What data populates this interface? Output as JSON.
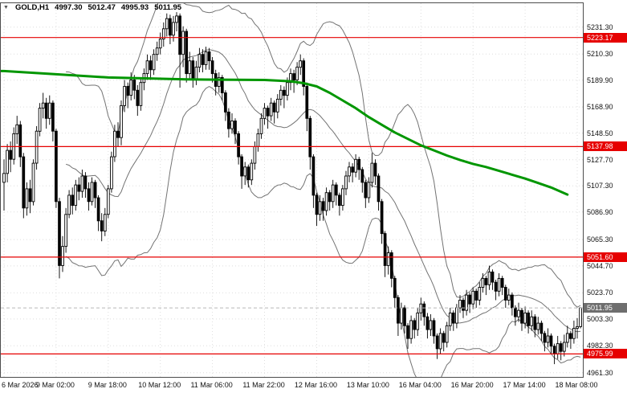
{
  "header": {
    "symbol_period": "GOLD,H1",
    "open": "4997.30",
    "high": "5012.47",
    "low": "4995.93",
    "close": "5011.95"
  },
  "chart_data": {
    "type": "candlestick",
    "title": "GOLD,H1",
    "timeframe": "H1",
    "symbol": "GOLD",
    "x_labels": [
      "6 Mar 2026",
      "9 Mar 02:00",
      "9 Mar 18:00",
      "10 Mar 12:00",
      "11 Mar 06:00",
      "11 Mar 22:00",
      "12 Mar 16:00",
      "13 Mar 10:00",
      "16 Mar 04:00",
      "16 Mar 20:00",
      "17 Mar 14:00",
      "18 Mar 08:00"
    ],
    "bars_per_label": 16,
    "y_ticks": [
      "5231.30",
      "5210.30",
      "5189.90",
      "5168.90",
      "5148.50",
      "5127.70",
      "5107.30",
      "5086.90",
      "5065.30",
      "5044.70",
      "5023.70",
      "5003.30",
      "4982.30",
      "4961.30"
    ],
    "y_range": [
      4958,
      5250
    ],
    "levels": [
      {
        "price": 5223.17,
        "label": "5223.17",
        "kind": "resistance"
      },
      {
        "price": 5137.98,
        "label": "5137.98",
        "kind": "resistance"
      },
      {
        "price": 5051.6,
        "label": "5051.60",
        "kind": "support"
      },
      {
        "price": 4975.99,
        "label": "4975.99",
        "kind": "support"
      }
    ],
    "current_price": {
      "price": 5011.95,
      "label": "5011.95"
    },
    "indicators": {
      "bollinger": {
        "period": 20,
        "deviation": 2
      },
      "ma_green": {
        "name": "long-moving-average",
        "points": [
          [
            0,
            5197
          ],
          [
            16,
            5194.5
          ],
          [
            32,
            5192
          ],
          [
            56,
            5190.5
          ],
          [
            80,
            5190
          ],
          [
            88,
            5189
          ],
          [
            92,
            5187.5
          ],
          [
            96,
            5185
          ],
          [
            100,
            5180
          ],
          [
            104,
            5174
          ],
          [
            108,
            5168
          ],
          [
            112,
            5161
          ],
          [
            116,
            5155
          ],
          [
            120,
            5149
          ],
          [
            124,
            5144
          ],
          [
            128,
            5139
          ],
          [
            132,
            5135
          ],
          [
            136,
            5131
          ],
          [
            140,
            5127.5
          ],
          [
            144,
            5124.5
          ],
          [
            148,
            5122
          ],
          [
            152,
            5119
          ],
          [
            156,
            5116
          ],
          [
            160,
            5113
          ],
          [
            164,
            5109.5
          ],
          [
            168,
            5106
          ],
          [
            173,
            5100.5
          ]
        ]
      }
    },
    "candles": [
      [
        5110,
        5128,
        5088,
        5117
      ],
      [
        5117,
        5140,
        5110,
        5135
      ],
      [
        5135,
        5142,
        5118,
        5128
      ],
      [
        5128,
        5153,
        5124,
        5148
      ],
      [
        5148,
        5162,
        5140,
        5155
      ],
      [
        5155,
        5158,
        5122,
        5130
      ],
      [
        5130,
        5133,
        5082,
        5090
      ],
      [
        5090,
        5110,
        5084,
        5105
      ],
      [
        5105,
        5112,
        5086,
        5095
      ],
      [
        5095,
        5128,
        5092,
        5125
      ],
      [
        5125,
        5154,
        5120,
        5150
      ],
      [
        5150,
        5172,
        5146,
        5168
      ],
      [
        5168,
        5180,
        5160,
        5172
      ],
      [
        5172,
        5176,
        5152,
        5160
      ],
      [
        5160,
        5178,
        5155,
        5172
      ],
      [
        5172,
        5174,
        5142,
        5150
      ],
      [
        5150,
        5152,
        5090,
        5095
      ],
      [
        5095,
        5098,
        5035,
        5045
      ],
      [
        5045,
        5068,
        5040,
        5060
      ],
      [
        5060,
        5090,
        5055,
        5085
      ],
      [
        5085,
        5104,
        5082,
        5100
      ],
      [
        5100,
        5106,
        5085,
        5092
      ],
      [
        5092,
        5112,
        5088,
        5108
      ],
      [
        5108,
        5114,
        5096,
        5103
      ],
      [
        5103,
        5120,
        5098,
        5115
      ],
      [
        5115,
        5118,
        5098,
        5105
      ],
      [
        5105,
        5110,
        5088,
        5095
      ],
      [
        5095,
        5114,
        5092,
        5110
      ],
      [
        5110,
        5112,
        5090,
        5098
      ],
      [
        5098,
        5100,
        5072,
        5080
      ],
      [
        5080,
        5086,
        5064,
        5072
      ],
      [
        5072,
        5090,
        5068,
        5085
      ],
      [
        5085,
        5108,
        5082,
        5105
      ],
      [
        5105,
        5134,
        5102,
        5130
      ],
      [
        5130,
        5155,
        5126,
        5150
      ],
      [
        5150,
        5157,
        5138,
        5145
      ],
      [
        5145,
        5174,
        5139,
        5170
      ],
      [
        5170,
        5190,
        5165,
        5185
      ],
      [
        5185,
        5188,
        5168,
        5178
      ],
      [
        5178,
        5196,
        5174,
        5190
      ],
      [
        5190,
        5194,
        5175,
        5182
      ],
      [
        5182,
        5186,
        5162,
        5170
      ],
      [
        5170,
        5192,
        5166,
        5188
      ],
      [
        5188,
        5199,
        5182,
        5195
      ],
      [
        5195,
        5210,
        5190,
        5205
      ],
      [
        5205,
        5209,
        5190,
        5198
      ],
      [
        5198,
        5214,
        5194,
        5210
      ],
      [
        5210,
        5220,
        5205,
        5215
      ],
      [
        5215,
        5227,
        5210,
        5222
      ],
      [
        5222,
        5235,
        5216,
        5230
      ],
      [
        5230,
        5242,
        5224,
        5238
      ],
      [
        5238,
        5241,
        5218,
        5225
      ],
      [
        5225,
        5240,
        5220,
        5235
      ],
      [
        5235,
        5243,
        5228,
        5240
      ],
      [
        5240,
        5242,
        5184,
        5210
      ],
      [
        5210,
        5232,
        5200,
        5228
      ],
      [
        5228,
        5230,
        5188,
        5195
      ],
      [
        5195,
        5212,
        5190,
        5205
      ],
      [
        5205,
        5208,
        5184,
        5190
      ],
      [
        5190,
        5205,
        5186,
        5200
      ],
      [
        5200,
        5215,
        5196,
        5210
      ],
      [
        5210,
        5214,
        5196,
        5202
      ],
      [
        5202,
        5216,
        5198,
        5212
      ],
      [
        5212,
        5215,
        5198,
        5205
      ],
      [
        5205,
        5208,
        5188,
        5195
      ],
      [
        5195,
        5198,
        5178,
        5185
      ],
      [
        5185,
        5196,
        5180,
        5192
      ],
      [
        5192,
        5194,
        5174,
        5180
      ],
      [
        5180,
        5182,
        5158,
        5165
      ],
      [
        5165,
        5168,
        5145,
        5152
      ],
      [
        5152,
        5164,
        5148,
        5158
      ],
      [
        5158,
        5160,
        5140,
        5148
      ],
      [
        5148,
        5150,
        5124,
        5130
      ],
      [
        5130,
        5132,
        5105,
        5115
      ],
      [
        5115,
        5126,
        5108,
        5122
      ],
      [
        5122,
        5124,
        5106,
        5112
      ],
      [
        5112,
        5128,
        5108,
        5125
      ],
      [
        5125,
        5142,
        5120,
        5138
      ],
      [
        5138,
        5152,
        5134,
        5148
      ],
      [
        5148,
        5164,
        5144,
        5160
      ],
      [
        5160,
        5172,
        5155,
        5168
      ],
      [
        5168,
        5170,
        5152,
        5162
      ],
      [
        5162,
        5176,
        5158,
        5172
      ],
      [
        5172,
        5174,
        5156,
        5165
      ],
      [
        5165,
        5179,
        5160,
        5175
      ],
      [
        5175,
        5186,
        5170,
        5182
      ],
      [
        5182,
        5185,
        5168,
        5178
      ],
      [
        5178,
        5192,
        5174,
        5188
      ],
      [
        5188,
        5199,
        5182,
        5195
      ],
      [
        5195,
        5198,
        5180,
        5190
      ],
      [
        5190,
        5204,
        5186,
        5200
      ],
      [
        5200,
        5210,
        5194,
        5205
      ],
      [
        5205,
        5207,
        5178,
        5185
      ],
      [
        5185,
        5188,
        5150,
        5160
      ],
      [
        5160,
        5162,
        5120,
        5130
      ],
      [
        5130,
        5132,
        5090,
        5100
      ],
      [
        5100,
        5102,
        5076,
        5085
      ],
      [
        5085,
        5100,
        5080,
        5095
      ],
      [
        5095,
        5098,
        5080,
        5088
      ],
      [
        5088,
        5106,
        5084,
        5102
      ],
      [
        5102,
        5104,
        5088,
        5095
      ],
      [
        5095,
        5112,
        5090,
        5108
      ],
      [
        5108,
        5110,
        5092,
        5100
      ],
      [
        5100,
        5102,
        5084,
        5092
      ],
      [
        5092,
        5108,
        5088,
        5105
      ],
      [
        5105,
        5119,
        5100,
        5115
      ],
      [
        5115,
        5126,
        5110,
        5122
      ],
      [
        5122,
        5125,
        5110,
        5118
      ],
      [
        5118,
        5132,
        5114,
        5128
      ],
      [
        5128,
        5130,
        5112,
        5120
      ],
      [
        5120,
        5122,
        5102,
        5110
      ],
      [
        5110,
        5112,
        5090,
        5098
      ],
      [
        5098,
        5114,
        5094,
        5110
      ],
      [
        5110,
        5133,
        5106,
        5125
      ],
      [
        5125,
        5128,
        5108,
        5115
      ],
      [
        5115,
        5117,
        5088,
        5095
      ],
      [
        5095,
        5097,
        5062,
        5070
      ],
      [
        5070,
        5072,
        5036,
        5045
      ],
      [
        5045,
        5060,
        5038,
        5055
      ],
      [
        5055,
        5057,
        5028,
        5035
      ],
      [
        5035,
        5037,
        5012,
        5020
      ],
      [
        5020,
        5022,
        4990,
        5000
      ],
      [
        5000,
        5016,
        4995,
        5012
      ],
      [
        5012,
        5014,
        4992,
        4998
      ],
      [
        4998,
        5000,
        4980,
        4988
      ],
      [
        4988,
        5006,
        4984,
        5002
      ],
      [
        5002,
        5004,
        4988,
        4995
      ],
      [
        4995,
        5012,
        4990,
        5008
      ],
      [
        5008,
        5020,
        5002,
        5015
      ],
      [
        5015,
        5017,
        4998,
        5005
      ],
      [
        5005,
        5008,
        4988,
        4995
      ],
      [
        4995,
        5007,
        4990,
        5002
      ],
      [
        5002,
        5004,
        4984,
        4990
      ],
      [
        4990,
        4992,
        4972,
        4980
      ],
      [
        4980,
        4996,
        4976,
        4992
      ],
      [
        4992,
        4994,
        4978,
        4985
      ],
      [
        4985,
        5001,
        4981,
        4998
      ],
      [
        4998,
        5012,
        4994,
        5008
      ],
      [
        5008,
        5010,
        4994,
        5000
      ],
      [
        5000,
        5015,
        4996,
        5012
      ],
      [
        5012,
        5022,
        5008,
        5018
      ],
      [
        5018,
        5020,
        5004,
        5010
      ],
      [
        5010,
        5026,
        5006,
        5022
      ],
      [
        5022,
        5024,
        5008,
        5015
      ],
      [
        5015,
        5028,
        5011,
        5025
      ],
      [
        5025,
        5027,
        5012,
        5018
      ],
      [
        5018,
        5032,
        5014,
        5028
      ],
      [
        5028,
        5039,
        5024,
        5035
      ],
      [
        5035,
        5037,
        5022,
        5030
      ],
      [
        5030,
        5045,
        5026,
        5040
      ],
      [
        5040,
        5042,
        5026,
        5032
      ],
      [
        5032,
        5034,
        5018,
        5025
      ],
      [
        5025,
        5039,
        5021,
        5035
      ],
      [
        5035,
        5037,
        5022,
        5028
      ],
      [
        5028,
        5030,
        5012,
        5018
      ],
      [
        5018,
        5027,
        5014,
        5022
      ],
      [
        5022,
        5024,
        5006,
        5012
      ],
      [
        5012,
        5014,
        4998,
        5005
      ],
      [
        5005,
        5016,
        5001,
        5010
      ],
      [
        5010,
        5012,
        4994,
        5000
      ],
      [
        5000,
        5013,
        4996,
        5008
      ],
      [
        5008,
        5010,
        4992,
        4998
      ],
      [
        4998,
        5010,
        4994,
        5005
      ],
      [
        5005,
        5007,
        4989,
        4995
      ],
      [
        4995,
        5005,
        4991,
        5000
      ],
      [
        5000,
        5002,
        4986,
        4992
      ],
      [
        4992,
        4994,
        4978,
        4985
      ],
      [
        4985,
        4996,
        4981,
        4990
      ],
      [
        4990,
        4992,
        4976,
        4982
      ],
      [
        4982,
        4984,
        4968,
        4976
      ],
      [
        4976,
        4990,
        4972,
        4984
      ],
      [
        4984,
        4986,
        4971,
        4978
      ],
      [
        4978,
        4991,
        4974,
        4985
      ],
      [
        4985,
        4998,
        4981,
        4992
      ],
      [
        4992,
        4994,
        4980,
        4988
      ],
      [
        4988,
        5002,
        4984,
        4996
      ],
      [
        4996,
        5004,
        4988,
        4997.3
      ],
      [
        4997.3,
        5012.47,
        4995.93,
        5011.95
      ]
    ],
    "colors": {
      "level_line": "#e60000",
      "level_badge": "#e60000",
      "current_badge": "#6e6e6e",
      "ma_green": "#009600",
      "bands": "#737373",
      "bull_fill": "#ffffff",
      "bear_fill": "#000000",
      "candle_stroke": "#000000",
      "grid": "#dedede",
      "current_line": "#b8b8b8"
    }
  }
}
